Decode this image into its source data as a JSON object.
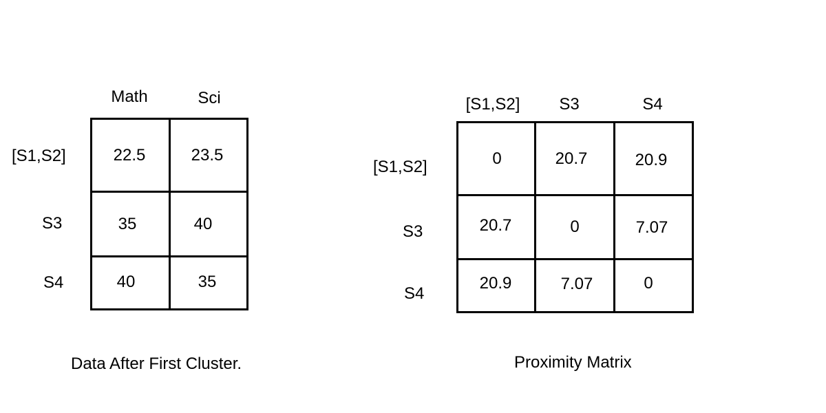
{
  "data_table": {
    "columns": [
      "Math",
      "Sci"
    ],
    "rows": [
      {
        "label": "[S1,S2]",
        "values": [
          "22.5",
          "23.5"
        ]
      },
      {
        "label": "S3",
        "values": [
          "35",
          "40"
        ]
      },
      {
        "label": "S4",
        "values": [
          "40",
          "35"
        ]
      }
    ],
    "caption": "Data After First Cluster."
  },
  "proximity_matrix": {
    "columns": [
      "[S1,S2]",
      "S3",
      "S4"
    ],
    "rows": [
      {
        "label": "[S1,S2]",
        "values": [
          "0",
          "20.7",
          "20.9"
        ]
      },
      {
        "label": "S3",
        "values": [
          "20.7",
          "0",
          "7.07"
        ]
      },
      {
        "label": "S4",
        "values": [
          "20.9",
          "7.07",
          "0"
        ]
      }
    ],
    "caption": "Proximity Matrix"
  }
}
